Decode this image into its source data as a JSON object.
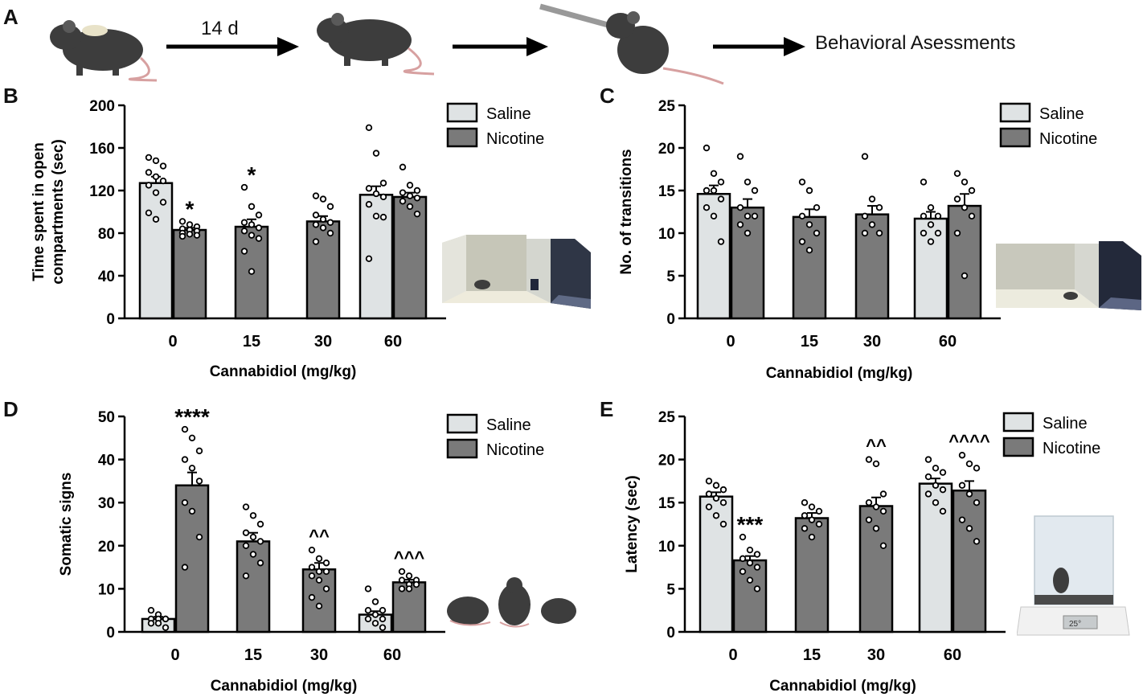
{
  "figure": {
    "panel_labels": [
      "A",
      "B",
      "C",
      "D",
      "E"
    ],
    "timeline": {
      "step1_label": "14 d",
      "end_label": "Behavioral Asessments"
    }
  },
  "colors": {
    "saline": "#dfe3e4",
    "nicotine": "#7a7a7a",
    "bar_stroke": "#000000"
  },
  "chart_data": [
    {
      "panel": "B",
      "type": "bar",
      "xlabel": "Cannabidiol (mg/kg)",
      "ylabel": "Time spent in open compartments (sec)",
      "ylabel_lines": [
        "Time spent in open",
        "compartments (sec)"
      ],
      "ylim": [
        0,
        200
      ],
      "yticks": [
        0,
        40,
        80,
        120,
        160,
        200
      ],
      "categories": [
        "0",
        "15",
        "30",
        "60"
      ],
      "legend": [
        "Saline",
        "Nicotine"
      ],
      "legend_placement": "top-right",
      "bars": [
        {
          "category": "0",
          "series": "Saline",
          "mean": 127,
          "sem": 6,
          "points": [
            151,
            148,
            143,
            137,
            133,
            129,
            125,
            118,
            109,
            99,
            93
          ],
          "annotation": ""
        },
        {
          "category": "0",
          "series": "Nicotine",
          "mean": 83,
          "sem": 2,
          "points": [
            91,
            88,
            86,
            84,
            83,
            82,
            80,
            79,
            78,
            77
          ],
          "annotation": "*"
        },
        {
          "category": "15",
          "series": "Nicotine",
          "mean": 86,
          "sem": 7,
          "points": [
            123,
            105,
            97,
            90,
            88,
            85,
            82,
            78,
            75,
            63,
            44
          ],
          "annotation": "*"
        },
        {
          "category": "30",
          "series": "Nicotine",
          "mean": 91,
          "sem": 5,
          "points": [
            115,
            112,
            105,
            97,
            93,
            90,
            88,
            85,
            80,
            72
          ],
          "annotation": ""
        },
        {
          "category": "60",
          "series": "Saline",
          "mean": 116,
          "sem": 8,
          "points": [
            179,
            155,
            127,
            122,
            117,
            114,
            107,
            96,
            95,
            56
          ],
          "annotation": ""
        },
        {
          "category": "60",
          "series": "Nicotine",
          "mean": 114,
          "sem": 4,
          "points": [
            142,
            125,
            120,
            118,
            115,
            113,
            110,
            105,
            98
          ],
          "annotation": ""
        }
      ]
    },
    {
      "panel": "C",
      "type": "bar",
      "xlabel": "Cannabidiol (mg/kg)",
      "ylabel": "No. of transitions",
      "ylabel_lines": [
        "No. of transitions"
      ],
      "ylim": [
        0,
        25
      ],
      "yticks": [
        0,
        5,
        10,
        15,
        20,
        25
      ],
      "categories": [
        "0",
        "15",
        "30",
        "60"
      ],
      "legend": [
        "Saline",
        "Nicotine"
      ],
      "legend_placement": "top-right",
      "bars": [
        {
          "category": "0",
          "series": "Saline",
          "mean": 14.6,
          "sem": 1,
          "points": [
            20,
            17,
            16,
            15,
            15,
            14,
            13,
            12,
            9
          ],
          "annotation": ""
        },
        {
          "category": "0",
          "series": "Nicotine",
          "mean": 13,
          "sem": 1,
          "points": [
            19,
            16,
            15,
            13,
            12,
            12,
            11,
            10
          ],
          "annotation": ""
        },
        {
          "category": "15",
          "series": "Nicotine",
          "mean": 11.9,
          "sem": 0.9,
          "points": [
            16,
            15,
            13,
            12,
            11,
            10,
            9,
            8
          ],
          "annotation": ""
        },
        {
          "category": "30",
          "series": "Nicotine",
          "mean": 12.2,
          "sem": 1,
          "points": [
            19,
            14,
            13,
            12,
            11,
            10,
            10
          ],
          "annotation": ""
        },
        {
          "category": "60",
          "series": "Saline",
          "mean": 11.7,
          "sem": 0.8,
          "points": [
            16,
            13,
            12,
            12,
            11,
            10,
            10,
            9
          ],
          "annotation": ""
        },
        {
          "category": "60",
          "series": "Nicotine",
          "mean": 13.2,
          "sem": 1.4,
          "points": [
            17,
            16,
            15,
            14,
            13,
            12,
            10,
            5
          ],
          "annotation": ""
        }
      ]
    },
    {
      "panel": "D",
      "type": "bar",
      "xlabel": "Cannabidiol (mg/kg)",
      "ylabel": "Somatic signs",
      "ylabel_lines": [
        "Somatic signs"
      ],
      "ylim": [
        0,
        50
      ],
      "yticks": [
        0,
        10,
        20,
        30,
        40,
        50
      ],
      "categories": [
        "0",
        "15",
        "30",
        "60"
      ],
      "legend": [
        "Saline",
        "Nicotine"
      ],
      "legend_placement": "top-right",
      "bars": [
        {
          "category": "0",
          "series": "Saline",
          "mean": 3,
          "sem": 0.5,
          "points": [
            5,
            4,
            3,
            3,
            3,
            3,
            2,
            2,
            1
          ],
          "annotation": ""
        },
        {
          "category": "0",
          "series": "Nicotine",
          "mean": 34,
          "sem": 3,
          "points": [
            47,
            45,
            42,
            40,
            38,
            35,
            30,
            28,
            22,
            15
          ],
          "annotation": "****"
        },
        {
          "category": "15",
          "series": "Nicotine",
          "mean": 21,
          "sem": 2,
          "points": [
            29,
            27,
            25,
            23,
            22,
            21,
            20,
            18,
            16,
            13
          ],
          "annotation": ""
        },
        {
          "category": "30",
          "series": "Nicotine",
          "mean": 14.5,
          "sem": 1.5,
          "points": [
            19,
            17,
            16,
            15,
            14,
            14,
            13,
            12,
            10,
            8,
            6
          ],
          "annotation": "^^"
        },
        {
          "category": "60",
          "series": "Saline",
          "mean": 4,
          "sem": 0.8,
          "points": [
            10,
            7,
            5,
            5,
            4,
            3,
            3,
            2,
            1
          ],
          "annotation": ""
        },
        {
          "category": "60",
          "series": "Nicotine",
          "mean": 11.5,
          "sem": 0.6,
          "points": [
            14,
            13,
            12,
            12,
            11,
            11,
            10,
            10
          ],
          "annotation": "^^^"
        }
      ]
    },
    {
      "panel": "E",
      "type": "bar",
      "xlabel": "Cannabidiol (mg/kg)",
      "ylabel": "Latency (sec)",
      "ylabel_lines": [
        "Latency (sec)"
      ],
      "ylim": [
        0,
        25
      ],
      "yticks": [
        0,
        5,
        10,
        15,
        20,
        25
      ],
      "categories": [
        "0",
        "15",
        "30",
        "60"
      ],
      "legend": [
        "Saline",
        "Nicotine"
      ],
      "legend_placement": "top-right",
      "bars": [
        {
          "category": "0",
          "series": "Saline",
          "mean": 15.7,
          "sem": 0.5,
          "points": [
            17.5,
            17,
            16.5,
            16,
            15.5,
            15,
            14.5,
            13.5,
            12.5
          ],
          "annotation": ""
        },
        {
          "category": "0",
          "series": "Nicotine",
          "mean": 8.3,
          "sem": 0.5,
          "points": [
            11,
            9.5,
            9,
            8.5,
            8,
            7.5,
            7,
            6,
            5
          ],
          "annotation": "***"
        },
        {
          "category": "15",
          "series": "Nicotine",
          "mean": 13.2,
          "sem": 0.6,
          "points": [
            15,
            14.5,
            14,
            13.5,
            13,
            12.5,
            12,
            11
          ],
          "annotation": ""
        },
        {
          "category": "30",
          "series": "Nicotine",
          "mean": 14.6,
          "sem": 1,
          "points": [
            20,
            19.5,
            16,
            15,
            14.5,
            14,
            13,
            12,
            10
          ],
          "annotation": "^^"
        },
        {
          "category": "60",
          "series": "Saline",
          "mean": 17.2,
          "sem": 0.6,
          "points": [
            20,
            19,
            18.5,
            18,
            17,
            16.5,
            16,
            15,
            14
          ],
          "annotation": ""
        },
        {
          "category": "60",
          "series": "Nicotine",
          "mean": 16.4,
          "sem": 1.1,
          "points": [
            20.5,
            19.5,
            19,
            17,
            16,
            15,
            13,
            12,
            10.5
          ],
          "annotation": "^^^^"
        }
      ]
    }
  ]
}
